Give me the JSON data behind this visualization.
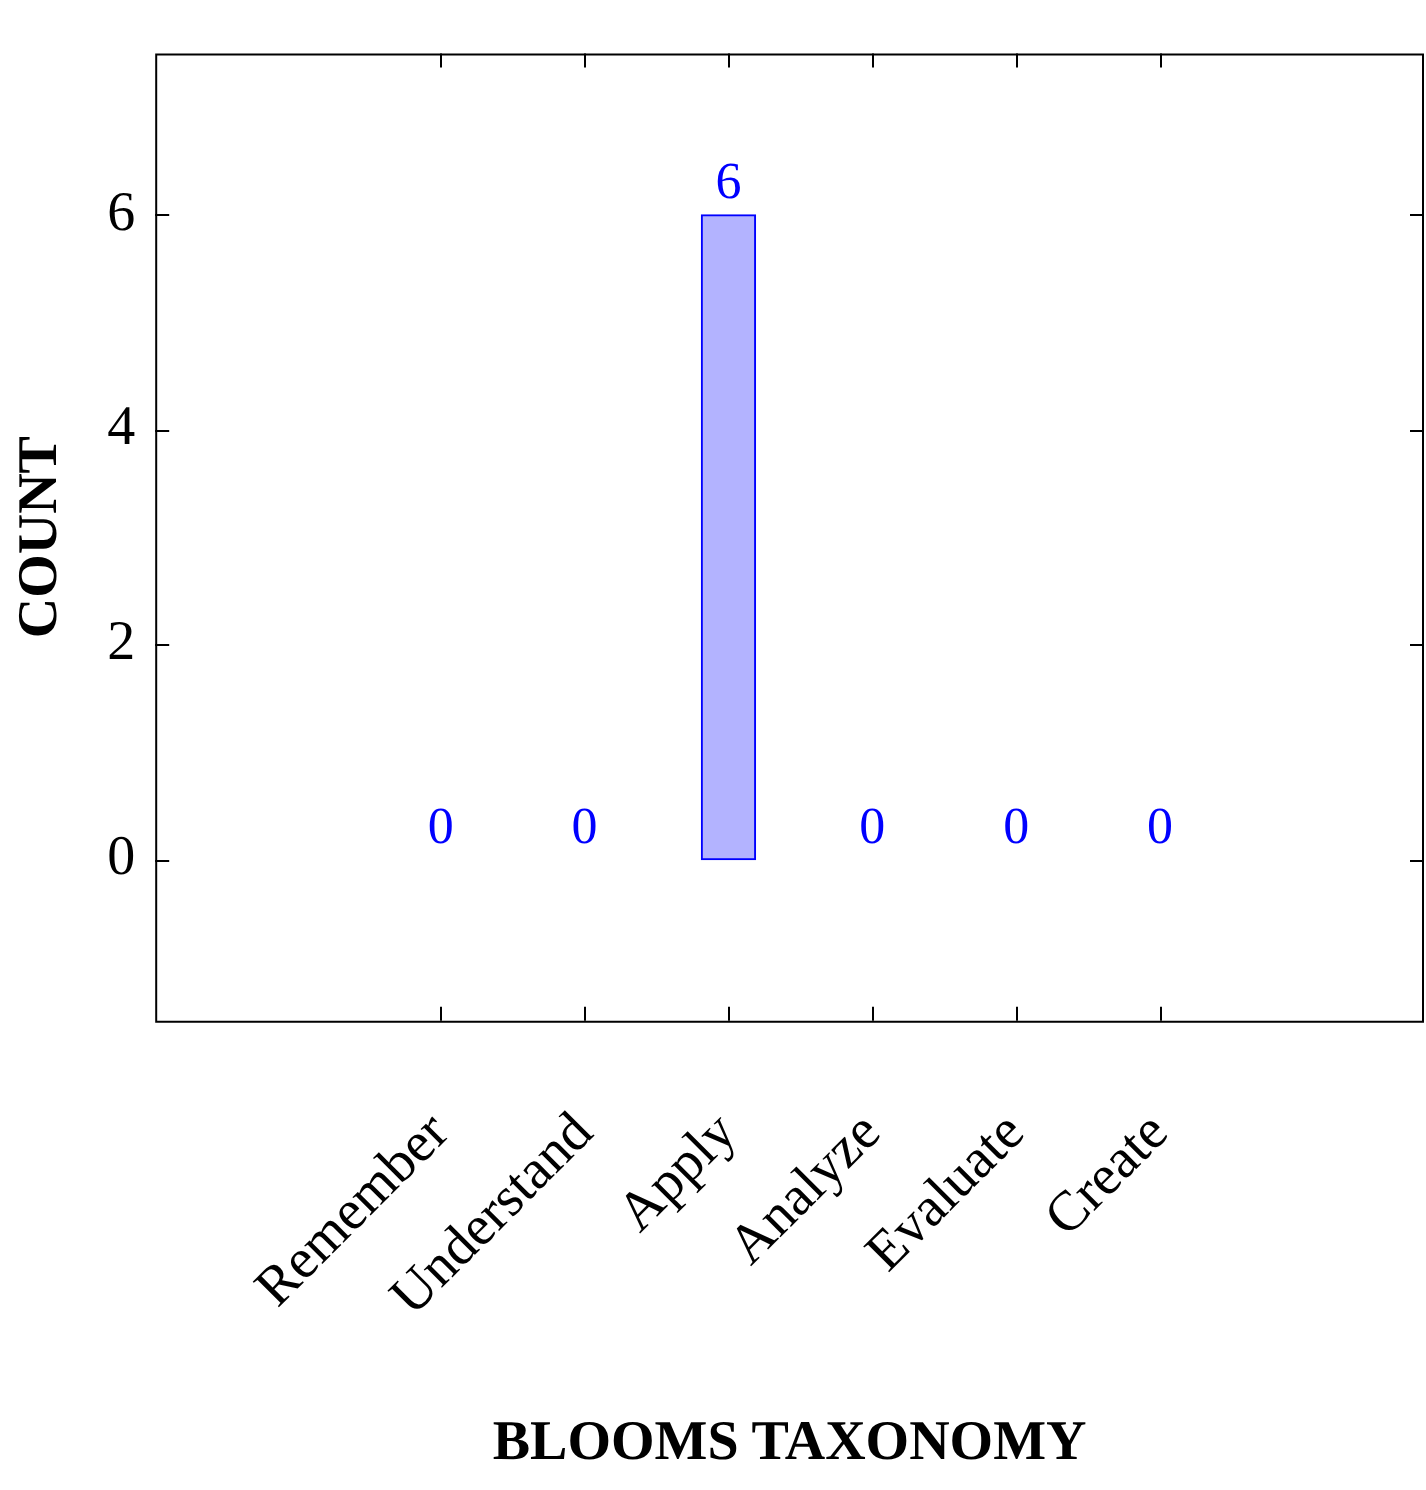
{
  "chart_data": {
    "type": "bar",
    "xlabel": "BLOOMS TAXONOMY",
    "ylabel": "COUNT",
    "categories": [
      "Remember",
      "Understand",
      "Apply",
      "Analyze",
      "Evaluate",
      "Create"
    ],
    "values": [
      0,
      0,
      6,
      0,
      0,
      0
    ],
    "color": "#b3b3ff",
    "ylim": [
      -1.5,
      7.5
    ],
    "yticks": [
      0,
      2,
      4,
      6
    ],
    "grid": false,
    "data_labels": true,
    "legend": false
  }
}
